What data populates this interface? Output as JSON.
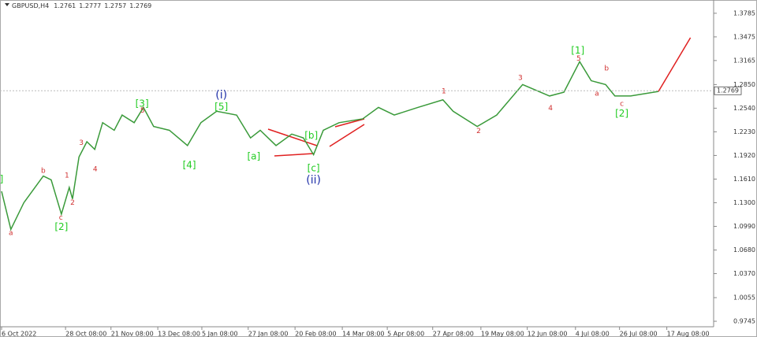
{
  "chart_data": {
    "type": "line",
    "symbol": "GBPUSD,H4",
    "quote": [
      1.2761,
      1.2777,
      1.2757,
      1.2769
    ],
    "current_price": 1.2769,
    "xlim": [
      0,
      15.36
    ],
    "ylim": [
      0.9673,
      1.3959
    ],
    "xticks": [
      {
        "value": 0,
        "label": "6 Oct 2022"
      },
      {
        "value": 1.38,
        "label": "28 Oct 08:00"
      },
      {
        "value": 2.36,
        "label": "21 Nov 08:00"
      },
      {
        "value": 3.37,
        "label": "13 Dec 08:00"
      },
      {
        "value": 4.32,
        "label": "5 Jan 08:00"
      },
      {
        "value": 5.32,
        "label": "27 Jan 08:00"
      },
      {
        "value": 6.33,
        "label": "20 Feb 08:00"
      },
      {
        "value": 7.35,
        "label": "14 Mar 08:00"
      },
      {
        "value": 8.32,
        "label": "5 Apr 08:00"
      },
      {
        "value": 9.3,
        "label": "27 Apr 08:00"
      },
      {
        "value": 10.34,
        "label": "19 May 08:00"
      },
      {
        "value": 11.34,
        "label": "12 Jun 08:00"
      },
      {
        "value": 12.38,
        "label": "4 Jul 08:00"
      },
      {
        "value": 13.33,
        "label": "26 Jul 08:00"
      },
      {
        "value": 14.35,
        "label": "17 Aug 08:00"
      }
    ],
    "yticks": [
      1.3785,
      1.3475,
      1.3165,
      {
        "value": 1.285,
        "label": "1.2850"
      },
      {
        "value": 1.254,
        "label": "1.2540"
      },
      {
        "value": 1.223,
        "label": "1.2230"
      },
      {
        "value": 1.192,
        "label": "1.1920"
      },
      {
        "value": 1.161,
        "label": "1.1610"
      },
      {
        "value": 1.13,
        "label": "1.1300"
      },
      {
        "value": 1.099,
        "label": "1.0990"
      },
      {
        "value": 1.068,
        "label": "1.0680"
      },
      {
        "value": 1.037,
        "label": "1.0370"
      },
      1.0055,
      0.9745
    ],
    "series": [
      {
        "color": "#3a9a3a",
        "x": [
          0,
          0.2,
          0.48,
          0.9,
          1.07,
          1.29,
          1.46,
          1.53,
          1.67,
          1.84,
          2.01,
          2.18,
          2.43,
          2.6,
          2.86,
          3.06,
          3.28,
          3.62,
          4.01,
          4.3,
          4.64,
          5.07,
          5.37,
          5.58,
          5.92,
          6.26,
          6.51,
          6.73,
          6.94,
          7.28,
          7.79,
          8.13,
          8.47,
          8.98,
          9.52,
          9.74,
          10.26,
          10.68,
          11.24,
          11.82,
          12.13,
          12.47,
          12.72,
          13.03,
          13.23,
          13.57,
          14.17
        ],
        "values": [
          1.145,
          1.095,
          1.13,
          1.165,
          1.16,
          1.115,
          1.15,
          1.135,
          1.19,
          1.21,
          1.2,
          1.235,
          1.225,
          1.245,
          1.235,
          1.255,
          1.23,
          1.225,
          1.205,
          1.235,
          1.25,
          1.245,
          1.215,
          1.225,
          1.205,
          1.22,
          1.215,
          1.193,
          1.225,
          1.235,
          1.24,
          1.255,
          1.245,
          1.255,
          1.265,
          1.25,
          1.23,
          1.245,
          1.285,
          1.27,
          1.275,
          1.315,
          1.29,
          1.285,
          1.27,
          1.27,
          1.276
        ]
      },
      {
        "color": "#e02020",
        "x": [
          14.17,
          14.86
        ],
        "values": [
          1.276,
          1.3465
        ]
      }
    ],
    "annotations": [
      {
        "text": "]",
        "x": 0,
        "y": 1.1604,
        "color": "#22cc22"
      },
      {
        "text": "a",
        "x": 0.2,
        "y": 1.09,
        "color": "#d03030"
      },
      {
        "text": "b",
        "x": 0.9,
        "y": 1.1718,
        "color": "#d03030"
      },
      {
        "text": "1",
        "x": 1.41,
        "y": 1.1657,
        "color": "#d03030"
      },
      {
        "text": "2",
        "x": 1.53,
        "y": 1.1299,
        "color": "#d03030"
      },
      {
        "text": "c",
        "x": 1.28,
        "y": 1.1105,
        "color": "#d03030"
      },
      {
        "text": "[2]",
        "x": 1.29,
        "y": 1.0982,
        "color": "#22cc22"
      },
      {
        "text": "3",
        "x": 1.72,
        "y": 1.2087,
        "color": "#d03030"
      },
      {
        "text": "4",
        "x": 2.02,
        "y": 1.1739,
        "color": "#d03030"
      },
      {
        "text": "[3]",
        "x": 3.03,
        "y": 1.2598,
        "color": "#22cc22"
      },
      {
        "text": "5",
        "x": 3.04,
        "y": 1.2506,
        "color": "#d03030"
      },
      {
        "text": "[4]",
        "x": 4.05,
        "y": 1.179,
        "color": "#22cc22"
      },
      {
        "text": "(i)",
        "x": 4.74,
        "y": 1.2711,
        "color": "#2233aa"
      },
      {
        "text": "[5]",
        "x": 4.74,
        "y": 1.2557,
        "color": "#22cc22"
      },
      {
        "text": "[a]",
        "x": 5.44,
        "y": 1.1903,
        "color": "#22cc22"
      },
      {
        "text": "[b]",
        "x": 6.68,
        "y": 1.2179,
        "color": "#22cc22"
      },
      {
        "text": "[c]",
        "x": 6.73,
        "y": 1.1749,
        "color": "#22cc22"
      },
      {
        "text": "(ii)",
        "x": 6.73,
        "y": 1.1596,
        "color": "#2233aa"
      },
      {
        "text": "1",
        "x": 9.54,
        "y": 1.2762,
        "color": "#d03030"
      },
      {
        "text": "2",
        "x": 10.29,
        "y": 1.224,
        "color": "#d03030"
      },
      {
        "text": "3",
        "x": 11.19,
        "y": 1.2936,
        "color": "#d03030"
      },
      {
        "text": "4",
        "x": 11.84,
        "y": 1.2537,
        "color": "#d03030"
      },
      {
        "text": "[1]",
        "x": 12.43,
        "y": 1.3294,
        "color": "#22cc22"
      },
      {
        "text": "5",
        "x": 12.45,
        "y": 1.3192,
        "color": "#d03030"
      },
      {
        "text": "b",
        "x": 13.05,
        "y": 1.3059,
        "color": "#d03030"
      },
      {
        "text": "a",
        "x": 12.84,
        "y": 1.2731,
        "color": "#d03030"
      },
      {
        "text": "c",
        "x": 13.38,
        "y": 1.2598,
        "color": "#d03030"
      },
      {
        "text": "[2]",
        "x": 13.38,
        "y": 1.2465,
        "color": "#22cc22"
      }
    ]
  }
}
